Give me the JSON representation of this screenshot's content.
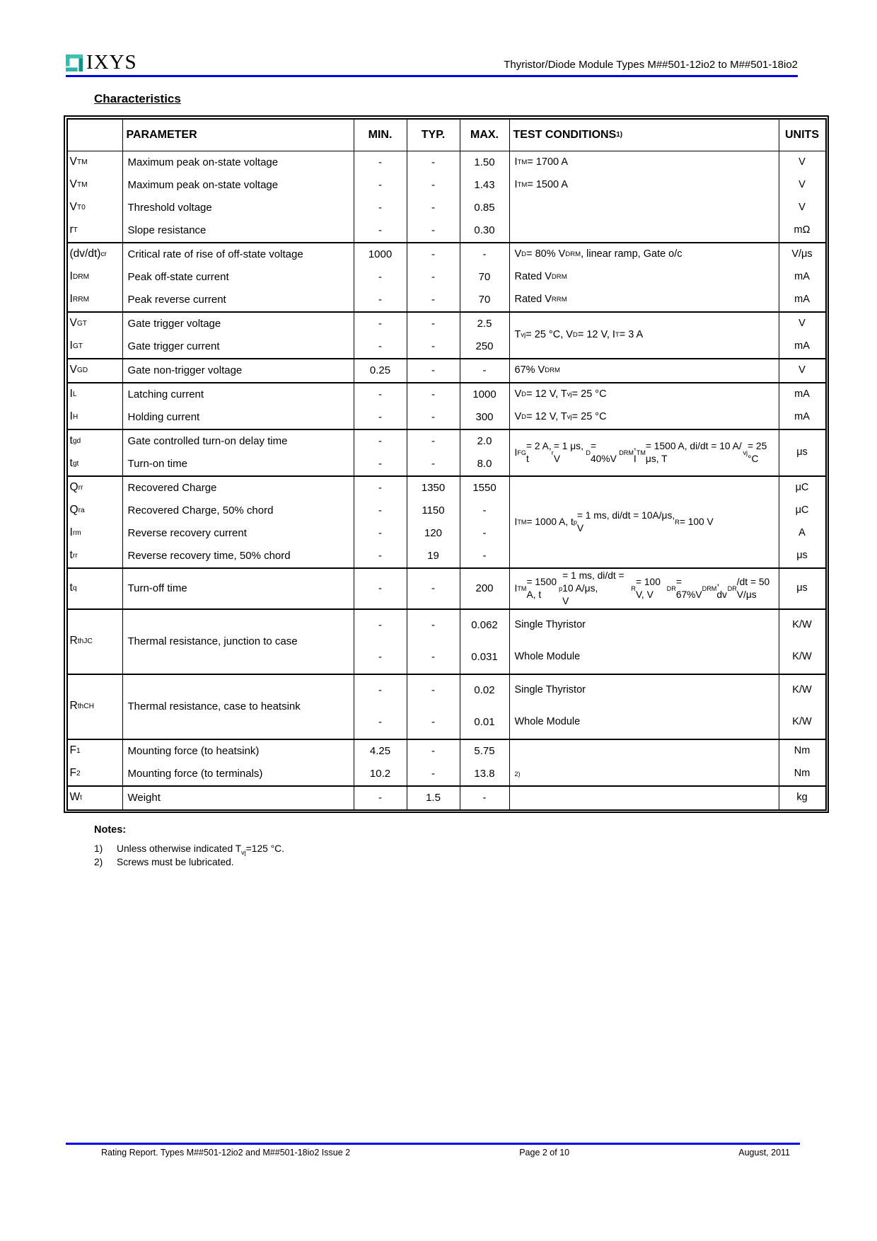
{
  "colors": {
    "rule_blue": "#0000ee",
    "logo_teal_light": "#3fc0b3",
    "logo_teal_dark": "#0f9285"
  },
  "header": {
    "logo_text": "IXYS",
    "doc_title": "Thyristor/Diode Module Types M##501-12io2 to M##501-18io2"
  },
  "section_title": "Characteristics",
  "table": {
    "headers": {
      "parameter": "PARAMETER",
      "min": "MIN.",
      "typ": "TYP.",
      "max": "MAX.",
      "cond": "TEST CONDITIONS ^{1)}",
      "units": "UNITS"
    },
    "groups": [
      {
        "rows": [
          {
            "sym": "V_{TM}",
            "param": "Maximum peak on-state voltage",
            "min": "-",
            "typ": "-",
            "max": "1.50",
            "cond": "I_{TM} = 1700 A",
            "unit": "V"
          },
          {
            "sym": "V_{TM}",
            "param": "Maximum peak on-state voltage",
            "min": "-",
            "typ": "-",
            "max": "1.43",
            "cond": "I_{TM} = 1500 A",
            "unit": "V"
          },
          {
            "sym": "V_{T0}",
            "param": "Threshold voltage",
            "min": "-",
            "typ": "-",
            "max": "0.85",
            "cond": "",
            "unit": "V"
          },
          {
            "sym": "r_{T}",
            "param": "Slope resistance",
            "min": "-",
            "typ": "-",
            "max": "0.30",
            "cond": "",
            "unit": "mΩ"
          }
        ]
      },
      {
        "rows": [
          {
            "sym": "(dv/dt)_{cr}",
            "param": "Critical rate of rise of off-state voltage",
            "min": "1000",
            "typ": "-",
            "max": "-",
            "cond": "V_{D} = 80% V_{DRM}, linear ramp, Gate o/c",
            "unit": "V/μs"
          },
          {
            "sym": "I_{DRM}",
            "param": "Peak off-state current",
            "min": "-",
            "typ": "-",
            "max": "70",
            "cond": "Rated V_{DRM}",
            "unit": "mA"
          },
          {
            "sym": "I_{RRM}",
            "param": "Peak reverse current",
            "min": "-",
            "typ": "-",
            "max": "70",
            "cond": "Rated V_{RRM}",
            "unit": "mA"
          }
        ]
      },
      {
        "merge_cond": "T_{vj} = 25 °C, V_{D} = 12 V, I_{T} = 3 A",
        "rows": [
          {
            "sym": "V_{GT}",
            "param": "Gate trigger voltage",
            "min": "-",
            "typ": "-",
            "max": "2.5",
            "unit": "V"
          },
          {
            "sym": "I_{GT}",
            "param": "Gate trigger current",
            "min": "-",
            "typ": "-",
            "max": "250",
            "unit": "mA"
          }
        ]
      },
      {
        "rows": [
          {
            "sym": "V_{GD}",
            "param": "Gate non-trigger voltage",
            "min": "0.25",
            "typ": "-",
            "max": "-",
            "cond": "67% V_{DRM}",
            "unit": "V"
          }
        ]
      },
      {
        "rows": [
          {
            "sym": "I_{L}",
            "param": "Latching current",
            "min": "-",
            "typ": "-",
            "max": "1000",
            "cond": "V_{D} = 12 V, T_{vj} = 25 °C",
            "unit": "mA"
          },
          {
            "sym": "I_{H}",
            "param": "Holding current",
            "min": "-",
            "typ": "-",
            "max": "300",
            "cond": "V_{D} = 12 V, T_{vj} = 25 °C",
            "unit": "mA"
          }
        ]
      },
      {
        "merge_cond": "I_{FG} = 2 A, t_{r} = 1 μs, V_{D} = 40%V_{DRM},\nI_{TM} = 1500 A, di/dt = 10 A/μs, T_{vj} = 25 °C",
        "merge_unit": "μs",
        "rows": [
          {
            "sym": "t_{gd}",
            "param": "Gate controlled turn-on delay time",
            "min": "-",
            "typ": "-",
            "max": "2.0"
          },
          {
            "sym": "t_{gt}",
            "param": "Turn-on time",
            "min": "-",
            "typ": "-",
            "max": "8.0"
          }
        ]
      },
      {
        "merge_cond": "I_{TM} = 1000 A, t_{p} = 1 ms, di/dt = 10A/μs,\nV_{R} = 100 V",
        "rows": [
          {
            "sym": "Q_{rr}",
            "param": "Recovered Charge",
            "min": "-",
            "typ": "1350",
            "max": "1550",
            "unit": "μC"
          },
          {
            "sym": "Q_{ra}",
            "param": "Recovered Charge, 50% chord",
            "min": "-",
            "typ": "1150",
            "max": "-",
            "unit": "μC"
          },
          {
            "sym": "I_{rm}",
            "param": "Reverse recovery current",
            "min": "-",
            "typ": "120",
            "max": "-",
            "unit": "A"
          },
          {
            "sym": "t_{rr}",
            "param": "Reverse recovery time, 50% chord",
            "min": "-",
            "typ": "19",
            "max": "-",
            "unit": "μs"
          }
        ]
      },
      {
        "rows": [
          {
            "sym": "t_{q}",
            "param": "Turn-off time",
            "min": "-",
            "typ": "-",
            "max": "200",
            "cond": "I_{TM} = 1500 A, t_{p} = 1 ms, di/dt = 10 A/μs,\nV_{R} = 100 V, V_{DR} = 67%V_{DRM}, dv_{DR}/dt = 50 V/μs",
            "unit": "μs"
          }
        ]
      },
      {
        "sym": "R_{thJC}",
        "param": "Thermal resistance, junction to case",
        "rows": [
          {
            "min": "-",
            "typ": "-",
            "max": "0.062",
            "cond": "Single Thyristor",
            "unit": "K/W"
          },
          {
            "min": "-",
            "typ": "-",
            "max": "0.031",
            "cond": "Whole Module",
            "unit": "K/W"
          }
        ]
      },
      {
        "sym": "R_{thCH}",
        "param": "Thermal resistance, case to heatsink",
        "rows": [
          {
            "min": "-",
            "typ": "-",
            "max": "0.02",
            "cond": "Single Thyristor",
            "unit": "K/W"
          },
          {
            "min": "-",
            "typ": "-",
            "max": "0.01",
            "cond": "Whole Module",
            "unit": "K/W"
          }
        ]
      },
      {
        "rows": [
          {
            "sym": "F_{1}",
            "param": "Mounting force (to heatsink)",
            "min": "4.25",
            "typ": "-",
            "max": "5.75",
            "cond": "",
            "unit": "Nm"
          },
          {
            "sym": "F_{2}",
            "param": "Mounting force (to terminals)",
            "min": "10.2",
            "typ": "-",
            "max": "13.8",
            "cond": "^{2)}",
            "unit": "Nm"
          }
        ]
      },
      {
        "rows": [
          {
            "sym": "W_{t}",
            "param": "Weight",
            "min": "-",
            "typ": "1.5",
            "max": "-",
            "cond": "",
            "unit": "kg"
          }
        ]
      }
    ]
  },
  "notes": {
    "title": "Notes:",
    "items": [
      {
        "num": "1)",
        "text": "Unless otherwise indicated T_{vj}=125 °C."
      },
      {
        "num": "2)",
        "text": "Screws must be lubricated."
      }
    ]
  },
  "footer": {
    "left": "Rating Report. Types M##501-12io2 and M##501-18io2 Issue 2",
    "center": "Page 2 of 10",
    "right": "August, 2011"
  }
}
